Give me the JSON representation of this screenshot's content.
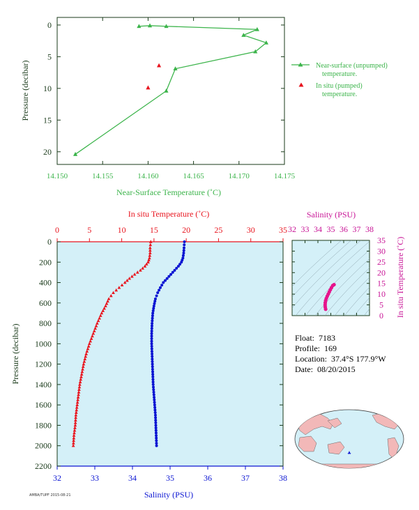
{
  "colors": {
    "green": "#3cb44b",
    "red": "#e8141e",
    "blue": "#0a14d2",
    "magenta": "#e6148c",
    "axis_dark": "#1a3a1a",
    "panel_bg": "#d4f0f8"
  },
  "info": {
    "float_label": "Float:",
    "float_value": "7183",
    "profile_label": "Profile:",
    "profile_value": "169",
    "location_label": "Location:",
    "location_value": "37.4°S  177.9°W",
    "date_label": "Date:",
    "date_value": "08/20/2015"
  },
  "footer_text": "AMBA/TUPF 2015-08-21",
  "chart_data": [
    {
      "type": "line",
      "xlabel": "Near-Surface Temperature (˚C)",
      "ylabel": "Pressure (decibar)",
      "xlim": [
        14.15,
        14.175
      ],
      "ylim": [
        22,
        -1.2
      ],
      "xticks": [
        "14.150",
        "14.155",
        "14.160",
        "14.165",
        "14.170",
        "14.175"
      ],
      "yticks": [
        "0",
        "5",
        "10",
        "15",
        "20"
      ],
      "legend_position": "right",
      "series": [
        {
          "name": "Near-surface (unpumped) temperature.",
          "color": "#3cb44b",
          "marker": "triangle",
          "points": [
            [
              14.159,
              0.2
            ],
            [
              14.1602,
              0.1
            ],
            [
              14.162,
              0.2
            ],
            [
              14.172,
              0.7
            ],
            [
              14.1705,
              1.6
            ],
            [
              14.173,
              2.8
            ],
            [
              14.1718,
              4.2
            ],
            [
              14.163,
              6.9
            ],
            [
              14.162,
              10.4
            ],
            [
              14.152,
              20.4
            ]
          ]
        },
        {
          "name": "In situ (pumped) temperature.",
          "color": "#e8141e",
          "marker": "triangle",
          "points": [
            [
              14.1612,
              6.4
            ],
            [
              14.16,
              9.9
            ]
          ]
        }
      ]
    },
    {
      "type": "scatter",
      "ylabel": "Pressure (decibar)",
      "ylim": [
        2200,
        0
      ],
      "yticks": [
        "0",
        "200",
        "400",
        "600",
        "800",
        "1000",
        "1200",
        "1400",
        "1600",
        "1800",
        "2000",
        "2200"
      ],
      "top_axis": {
        "label": "In situ Temperature (˚C)",
        "range": [
          0,
          35
        ],
        "ticks": [
          "0",
          "5",
          "10",
          "15",
          "20",
          "25",
          "30",
          "35"
        ]
      },
      "bottom_axis": {
        "label": "Salinity (PSU)",
        "range": [
          32,
          38
        ],
        "ticks": [
          "32",
          "33",
          "34",
          "35",
          "36",
          "37",
          "38"
        ]
      },
      "series": [
        {
          "axis": "top",
          "color": "#e8141e",
          "marker": "triangle",
          "profile": [
            [
              14.5,
              0
            ],
            [
              14.4,
              60
            ],
            [
              14.4,
              110
            ],
            [
              14.3,
              160
            ],
            [
              14.1,
              200
            ],
            [
              13.6,
              240
            ],
            [
              12.9,
              280
            ],
            [
              12.0,
              320
            ],
            [
              11.2,
              360
            ],
            [
              10.5,
              400
            ],
            [
              9.6,
              450
            ],
            [
              8.7,
              500
            ],
            [
              8.0,
              560
            ],
            [
              7.5,
              630
            ],
            [
              6.9,
              700
            ],
            [
              6.2,
              800
            ],
            [
              5.6,
              900
            ],
            [
              5.0,
              1000
            ],
            [
              4.5,
              1100
            ],
            [
              4.1,
              1200
            ],
            [
              3.8,
              1300
            ],
            [
              3.5,
              1400
            ],
            [
              3.3,
              1500
            ],
            [
              3.1,
              1600
            ],
            [
              2.9,
              1700
            ],
            [
              2.8,
              1800
            ],
            [
              2.6,
              1900
            ],
            [
              2.5,
              2000
            ]
          ]
        },
        {
          "axis": "bottom",
          "color": "#0a14d2",
          "marker": "dot",
          "profile": [
            [
              35.38,
              0
            ],
            [
              35.37,
              60
            ],
            [
              35.36,
              110
            ],
            [
              35.34,
              160
            ],
            [
              35.3,
              200
            ],
            [
              35.22,
              240
            ],
            [
              35.12,
              280
            ],
            [
              35.02,
              320
            ],
            [
              34.92,
              360
            ],
            [
              34.82,
              400
            ],
            [
              34.74,
              450
            ],
            [
              34.67,
              500
            ],
            [
              34.61,
              560
            ],
            [
              34.57,
              630
            ],
            [
              34.54,
              700
            ],
            [
              34.52,
              800
            ],
            [
              34.51,
              900
            ],
            [
              34.51,
              1000
            ],
            [
              34.52,
              1100
            ],
            [
              34.53,
              1200
            ],
            [
              34.54,
              1300
            ],
            [
              34.55,
              1400
            ],
            [
              34.57,
              1500
            ],
            [
              34.59,
              1600
            ],
            [
              34.61,
              1700
            ],
            [
              34.62,
              1800
            ],
            [
              34.63,
              1900
            ],
            [
              34.64,
              2000
            ]
          ]
        }
      ]
    },
    {
      "type": "scatter",
      "title": "Salinity (PSU)",
      "ylabel": "In situ Temperature (˚C)",
      "xlim": [
        32,
        38
      ],
      "ylim": [
        0,
        35
      ],
      "xticks": [
        "32",
        "33",
        "34",
        "35",
        "36",
        "37",
        "38"
      ],
      "yticks": [
        "0",
        "5",
        "10",
        "15",
        "20",
        "25",
        "30",
        "35"
      ],
      "grid": "density contours",
      "series": [
        {
          "color": "#e6148c",
          "points": [
            [
              34.6,
              3.0
            ],
            [
              34.57,
              4.0
            ],
            [
              34.56,
              5.0
            ],
            [
              34.57,
              6.0
            ],
            [
              34.6,
              7.0
            ],
            [
              34.65,
              8.0
            ],
            [
              34.72,
              9.0
            ],
            [
              34.8,
              10.0
            ],
            [
              34.88,
              11.0
            ],
            [
              34.96,
              12.0
            ],
            [
              35.05,
              13.0
            ],
            [
              35.15,
              14.0
            ],
            [
              35.25,
              14.4
            ]
          ]
        }
      ]
    }
  ]
}
